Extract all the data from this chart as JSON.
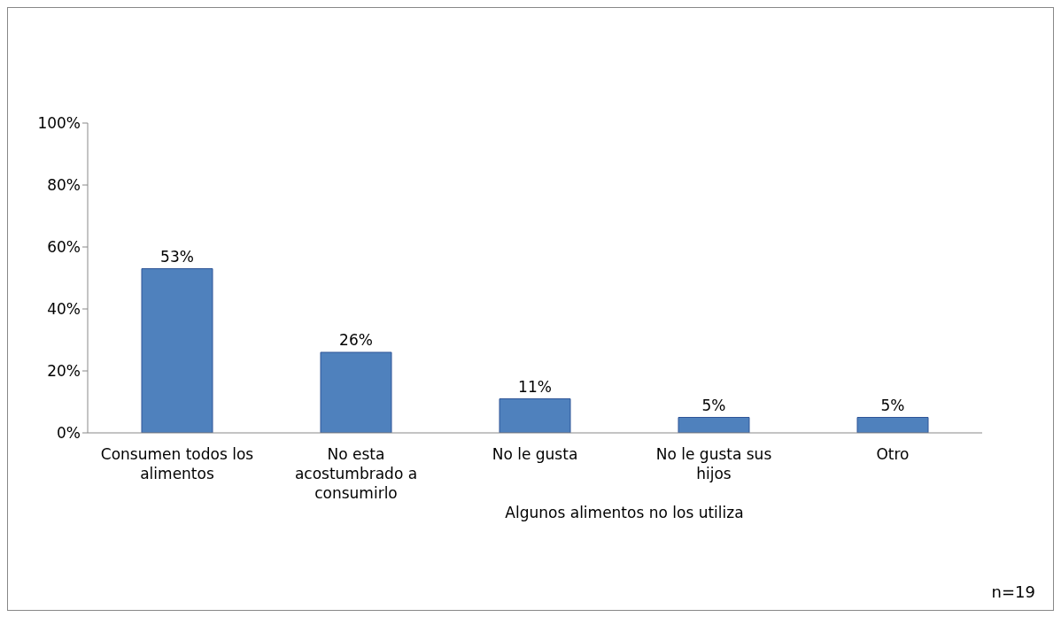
{
  "chart_data": {
    "type": "bar",
    "categories": [
      "Consumen todos los alimentos",
      "No esta acostumbrado a consumirlo",
      "No le gusta",
      "No le gusta sus hijos",
      "Otro"
    ],
    "values": [
      53,
      26,
      11,
      5,
      5
    ],
    "value_labels": [
      "53%",
      "26%",
      "11%",
      "5%",
      "5%"
    ],
    "color": "#4f81bd",
    "ylim": [
      0,
      100
    ],
    "yticks": [
      {
        "value": 0,
        "label": "0%"
      },
      {
        "value": 20,
        "label": "20%"
      },
      {
        "value": 40,
        "label": "40%"
      },
      {
        "value": 60,
        "label": "60%"
      },
      {
        "value": 80,
        "label": "80%"
      },
      {
        "value": 100,
        "label": "100%"
      }
    ],
    "annotations": [
      "Algunos alimentos no los utiliza",
      "n=19"
    ]
  }
}
